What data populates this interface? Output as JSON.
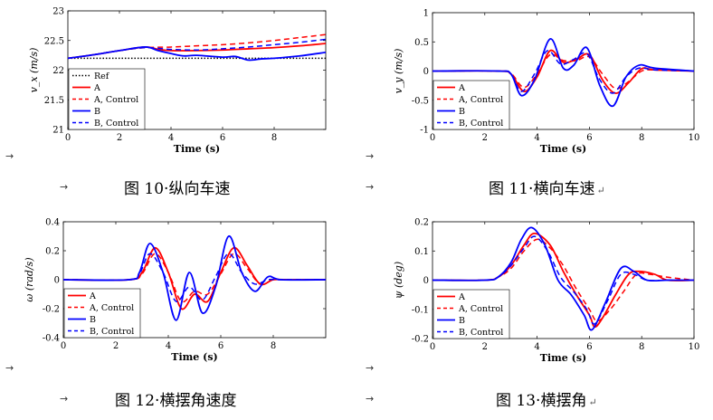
{
  "captions": [
    {
      "fig": "图 10",
      "text": "纵向车速",
      "ret": ""
    },
    {
      "fig": "图 11",
      "text": "横向车速",
      "ret": "↵"
    },
    {
      "fig": "图 12",
      "text": "横摆角速度",
      "ret": ""
    },
    {
      "fig": "图 13",
      "text": "横摆角",
      "ret": "↵"
    }
  ],
  "arrow_glyph": "→",
  "legend_labels": [
    "Ref",
    "A",
    "A, Control",
    "B",
    "B, Control"
  ],
  "colors": {
    "A": "#ff0000",
    "B": "#0000ff",
    "Ref": "#000000"
  },
  "chart_data": [
    {
      "type": "line",
      "xlabel": "Time (s)",
      "ylabel": "v_x (m/s)",
      "xlim": [
        0,
        10
      ],
      "ylim": [
        21,
        23
      ],
      "xticks": [
        0,
        2,
        4,
        6,
        8
      ],
      "yticks": [
        21,
        21.5,
        22,
        22.5,
        23
      ],
      "legend": "bottom-left",
      "series": [
        {
          "name": "Ref",
          "style": "dotted",
          "color": "#000000",
          "x": [
            0,
            10
          ],
          "y": [
            22.2,
            22.2
          ]
        },
        {
          "name": "A",
          "style": "solid",
          "color": "#ff0000",
          "x": [
            0,
            1,
            2,
            3,
            3.5,
            4,
            5,
            6,
            7,
            8,
            9,
            10
          ],
          "y": [
            22.2,
            22.26,
            22.33,
            22.39,
            22.35,
            22.33,
            22.33,
            22.34,
            22.36,
            22.38,
            22.41,
            22.45
          ]
        },
        {
          "name": "A, Control",
          "style": "dashed",
          "color": "#ff0000",
          "x": [
            0,
            1,
            2,
            3,
            4,
            5,
            6,
            7,
            8,
            9,
            10
          ],
          "y": [
            22.2,
            22.26,
            22.33,
            22.38,
            22.39,
            22.41,
            22.43,
            22.46,
            22.5,
            22.55,
            22.6
          ]
        },
        {
          "name": "B",
          "style": "solid",
          "color": "#0000ff",
          "x": [
            0,
            1,
            2,
            3,
            3.5,
            4,
            4.5,
            5,
            6,
            6.5,
            7,
            7.5,
            8,
            9,
            10
          ],
          "y": [
            22.2,
            22.26,
            22.33,
            22.39,
            22.33,
            22.28,
            22.24,
            22.25,
            22.22,
            22.23,
            22.17,
            22.19,
            22.2,
            22.24,
            22.3
          ]
        },
        {
          "name": "B, Control",
          "style": "dashed",
          "color": "#0000ff",
          "x": [
            0,
            1,
            2,
            3,
            4,
            5,
            6,
            7,
            8,
            9,
            10
          ],
          "y": [
            22.2,
            22.26,
            22.33,
            22.38,
            22.35,
            22.34,
            22.36,
            22.39,
            22.43,
            22.47,
            22.52
          ]
        }
      ]
    },
    {
      "type": "line",
      "xlabel": "Time (s)",
      "ylabel": "v_y (m/s)",
      "xlim": [
        0,
        10
      ],
      "ylim": [
        -1,
        1
      ],
      "xticks": [
        0,
        2,
        4,
        6,
        8,
        10
      ],
      "yticks": [
        -1,
        -0.5,
        0,
        0.5,
        1
      ],
      "legend": "bottom-left",
      "series": [
        {
          "name": "A",
          "style": "solid",
          "color": "#ff0000",
          "x": [
            0,
            2.5,
            3,
            3.5,
            4,
            4.5,
            5,
            5.5,
            6,
            6.5,
            7,
            7.5,
            8,
            8.5,
            10
          ],
          "y": [
            0,
            0,
            -0.05,
            -0.35,
            -0.1,
            0.35,
            0.15,
            0.2,
            0.28,
            -0.15,
            -0.38,
            -0.2,
            0.04,
            0.02,
            0
          ]
        },
        {
          "name": "A, Control",
          "style": "dashed",
          "color": "#ff0000",
          "x": [
            0,
            2.5,
            3,
            3.5,
            4,
            4.5,
            5,
            5.5,
            6,
            6.5,
            7,
            7.5,
            8,
            8.5,
            10
          ],
          "y": [
            0,
            0,
            -0.04,
            -0.28,
            -0.05,
            0.28,
            0.18,
            0.18,
            0.24,
            -0.05,
            -0.3,
            -0.18,
            0,
            0.02,
            0
          ]
        },
        {
          "name": "B",
          "style": "solid",
          "color": "#0000ff",
          "x": [
            0,
            2.5,
            3,
            3.4,
            3.9,
            4.5,
            5,
            5.4,
            5.9,
            6.4,
            6.9,
            7.4,
            7.9,
            8.5,
            10
          ],
          "y": [
            0,
            0,
            -0.05,
            -0.42,
            -0.15,
            0.55,
            0.05,
            0.1,
            0.4,
            -0.25,
            -0.6,
            -0.1,
            0.1,
            0.05,
            0
          ]
        },
        {
          "name": "B, Control",
          "style": "dashed",
          "color": "#0000ff",
          "x": [
            0,
            2.5,
            3,
            3.4,
            3.9,
            4.4,
            4.9,
            5.4,
            5.9,
            6.4,
            6.9,
            7.4,
            7.9,
            8.5,
            10
          ],
          "y": [
            0,
            0,
            -0.05,
            -0.35,
            -0.05,
            0.35,
            0.12,
            0.2,
            0.3,
            -0.15,
            -0.38,
            -0.1,
            0.05,
            0.02,
            0
          ]
        }
      ]
    },
    {
      "type": "line",
      "xlabel": "Time (s)",
      "ylabel": "ω (rad/s)",
      "xlim": [
        0,
        10
      ],
      "ylim": [
        -0.4,
        0.4
      ],
      "xticks": [
        0,
        2,
        4,
        6,
        8
      ],
      "yticks": [
        -0.4,
        -0.2,
        0,
        0.2,
        0.4
      ],
      "legend": "bottom-left",
      "series": [
        {
          "name": "A",
          "style": "solid",
          "color": "#ff0000",
          "x": [
            0,
            2.5,
            3,
            3.5,
            4,
            4.5,
            5,
            5.5,
            6,
            6.5,
            7,
            7.5,
            8,
            8.5,
            10
          ],
          "y": [
            0,
            0,
            0.05,
            0.22,
            0.05,
            -0.2,
            -0.1,
            -0.15,
            0.05,
            0.22,
            0.1,
            -0.03,
            0,
            0,
            0
          ]
        },
        {
          "name": "A, Control",
          "style": "dashed",
          "color": "#ff0000",
          "x": [
            0,
            2.5,
            3,
            3.5,
            4,
            4.5,
            5,
            5.5,
            6,
            6.5,
            7,
            7.5,
            8,
            8.5,
            10
          ],
          "y": [
            0,
            0,
            0.04,
            0.18,
            0.05,
            -0.15,
            -0.08,
            -0.1,
            0.04,
            0.18,
            0.08,
            -0.03,
            0,
            0,
            0
          ]
        },
        {
          "name": "B",
          "style": "solid",
          "color": "#0000ff",
          "x": [
            0,
            2.5,
            2.9,
            3.3,
            3.8,
            4.3,
            4.8,
            5.3,
            5.8,
            6.3,
            6.8,
            7.3,
            7.8,
            8.3,
            10
          ],
          "y": [
            0,
            0,
            0.05,
            0.25,
            0.05,
            -0.28,
            0.05,
            -0.23,
            -0.05,
            0.3,
            0.05,
            -0.08,
            0.02,
            0,
            0
          ]
        },
        {
          "name": "B, Control",
          "style": "dashed",
          "color": "#0000ff",
          "x": [
            0,
            2.5,
            2.9,
            3.3,
            3.8,
            4.3,
            4.8,
            5.3,
            5.8,
            6.3,
            6.8,
            7.3,
            7.8,
            8.3,
            10
          ],
          "y": [
            0,
            0,
            0.04,
            0.18,
            0.05,
            -0.15,
            -0.05,
            -0.14,
            0.02,
            0.18,
            0.05,
            -0.03,
            0,
            0,
            0
          ]
        }
      ]
    },
    {
      "type": "line",
      "xlabel": "Time (s)",
      "ylabel": "ψ (deg)",
      "xlim": [
        0,
        10
      ],
      "ylim": [
        -0.2,
        0.2
      ],
      "xticks": [
        0,
        2,
        4,
        6,
        8,
        10
      ],
      "yticks": [
        -0.2,
        -0.1,
        0,
        0.1,
        0.2
      ],
      "legend": "bottom-left",
      "series": [
        {
          "name": "A",
          "style": "solid",
          "color": "#ff0000",
          "x": [
            0,
            2,
            2.5,
            3,
            3.5,
            3.9,
            4.5,
            5,
            5.5,
            6,
            6.2,
            6.5,
            7,
            7.5,
            7.9,
            8.5,
            9,
            10
          ],
          "y": [
            0,
            0,
            0.01,
            0.05,
            0.12,
            0.16,
            0.12,
            0.03,
            -0.05,
            -0.12,
            -0.16,
            -0.13,
            -0.05,
            0.02,
            0.03,
            0.02,
            0,
            0
          ]
        },
        {
          "name": "A, Control",
          "style": "dashed",
          "color": "#ff0000",
          "x": [
            0,
            2,
            2.5,
            3,
            3.5,
            4,
            4.5,
            5,
            5.5,
            6,
            6.3,
            6.8,
            7.3,
            7.8,
            8.3,
            9,
            10
          ],
          "y": [
            0,
            0,
            0.01,
            0.04,
            0.1,
            0.14,
            0.11,
            0.05,
            -0.03,
            -0.1,
            -0.14,
            -0.1,
            -0.04,
            0.02,
            0.02,
            0.01,
            0
          ]
        },
        {
          "name": "B",
          "style": "solid",
          "color": "#0000ff",
          "x": [
            0,
            2,
            2.5,
            3,
            3.4,
            3.8,
            4.3,
            4.8,
            5.3,
            5.8,
            6.1,
            6.6,
            7.2,
            7.7,
            8.2,
            9,
            10
          ],
          "y": [
            0,
            0,
            0.01,
            0.06,
            0.14,
            0.18,
            0.12,
            0,
            -0.05,
            -0.12,
            -0.17,
            -0.08,
            0.04,
            0.03,
            0,
            0,
            0
          ]
        },
        {
          "name": "B, Control",
          "style": "dashed",
          "color": "#0000ff",
          "x": [
            0,
            2,
            2.5,
            3,
            3.5,
            3.9,
            4.4,
            4.9,
            5.4,
            5.9,
            6.2,
            6.7,
            7.2,
            7.7,
            8.2,
            9,
            10
          ],
          "y": [
            0,
            0,
            0.01,
            0.05,
            0.11,
            0.15,
            0.1,
            0.01,
            -0.04,
            -0.1,
            -0.15,
            -0.07,
            0.02,
            0.02,
            0,
            0,
            0
          ]
        }
      ]
    }
  ]
}
